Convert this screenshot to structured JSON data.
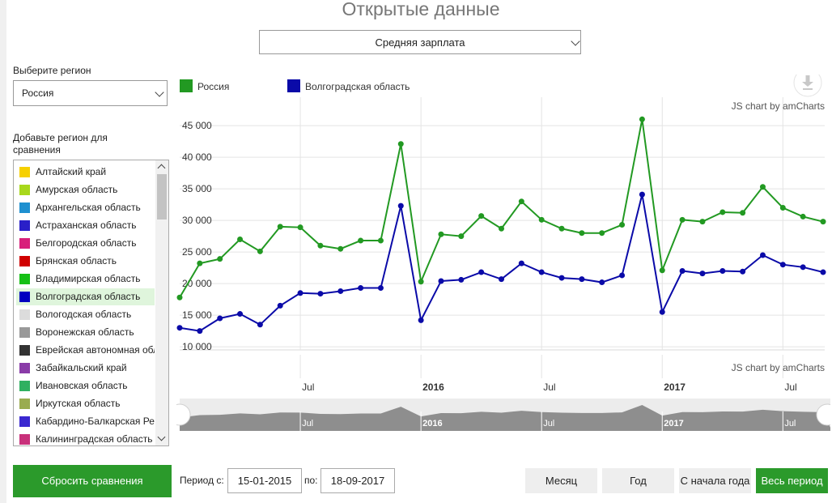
{
  "page": {
    "title": "Открытые данные"
  },
  "metric_select": {
    "value": "Средняя зарплата"
  },
  "sidebar": {
    "choose_label": "Выберите регион",
    "region_value": "Россия",
    "compare_label_line1": "Добавьте регион для",
    "compare_label_line2": "сравнения",
    "regions": [
      {
        "name": "Алтайский край",
        "color": "#f6d000"
      },
      {
        "name": "Амурская область",
        "color": "#a8d81c"
      },
      {
        "name": "Архангельская область",
        "color": "#1e90d0"
      },
      {
        "name": "Астраханская область",
        "color": "#2a1fc8"
      },
      {
        "name": "Белгородская область",
        "color": "#d81f7a"
      },
      {
        "name": "Брянская область",
        "color": "#d00000"
      },
      {
        "name": "Владимирская область",
        "color": "#15c015"
      },
      {
        "name": "Волгоградская область",
        "color": "#0000c0",
        "selected": true
      },
      {
        "name": "Вологодская область",
        "color": "#dcdcdc"
      },
      {
        "name": "Воронежская область",
        "color": "#999999"
      },
      {
        "name": "Еврейская автономная область",
        "color": "#333333"
      },
      {
        "name": "Забайкальский край",
        "color": "#8a3ca8"
      },
      {
        "name": "Ивановская область",
        "color": "#2fb060"
      },
      {
        "name": "Иркутская область",
        "color": "#9aac50"
      },
      {
        "name": "Кабардино-Балкарская Республика",
        "color": "#3a28d0"
      },
      {
        "name": "Калининградская область",
        "color": "#c8307a"
      }
    ]
  },
  "controls": {
    "reset_label": "Сбросить сравнения",
    "period_from_label": "Период с:",
    "period_from": "15-01-2015",
    "period_to_label": "по:",
    "period_to": "18-09-2017",
    "buttons": [
      "Месяц",
      "Год",
      "С начала года",
      "Весь период"
    ]
  },
  "chart_data": {
    "type": "line",
    "credit": "JS chart by amCharts",
    "y_ticks": [
      "10 000",
      "15 000",
      "20 000",
      "25 000",
      "30 000",
      "35 000",
      "40 000",
      "45 000"
    ],
    "x_labels": [
      {
        "label": "Jul",
        "date": "2015-07",
        "bold": false
      },
      {
        "label": "2016",
        "date": "2016-01",
        "bold": true
      },
      {
        "label": "Jul",
        "date": "2016-07",
        "bold": false
      },
      {
        "label": "2017",
        "date": "2017-01",
        "bold": true
      },
      {
        "label": "Jul",
        "date": "2017-07",
        "bold": false
      }
    ],
    "x": [
      "2015-01",
      "2015-02",
      "2015-03",
      "2015-04",
      "2015-05",
      "2015-06",
      "2015-07",
      "2015-08",
      "2015-09",
      "2015-10",
      "2015-11",
      "2015-12",
      "2016-01",
      "2016-02",
      "2016-03",
      "2016-04",
      "2016-05",
      "2016-06",
      "2016-07",
      "2016-08",
      "2016-09",
      "2016-10",
      "2016-11",
      "2016-12",
      "2017-01",
      "2017-02",
      "2017-03",
      "2017-04",
      "2017-05",
      "2017-06",
      "2017-07",
      "2017-08",
      "2017-09"
    ],
    "series": [
      {
        "name": "Россия",
        "color": "#229922",
        "values": [
          17800,
          23200,
          23900,
          27000,
          25100,
          29000,
          28900,
          26000,
          25500,
          26800,
          26800,
          42100,
          20300,
          27800,
          27500,
          30700,
          28700,
          33000,
          30100,
          28700,
          28000,
          28000,
          29300,
          46000,
          22100,
          30100,
          29800,
          31300,
          31200,
          35300,
          32000,
          30600,
          29800
        ]
      },
      {
        "name": "Волгоградская область",
        "color": "#0a0aa8",
        "values": [
          13000,
          12500,
          14500,
          15200,
          13500,
          16500,
          18500,
          18400,
          18800,
          19300,
          19300,
          32300,
          14200,
          20400,
          20600,
          21800,
          20700,
          23200,
          21800,
          20900,
          20700,
          20200,
          21300,
          34100,
          15500,
          22000,
          21600,
          22000,
          21900,
          24500,
          23000,
          22600,
          21800
        ]
      }
    ]
  }
}
